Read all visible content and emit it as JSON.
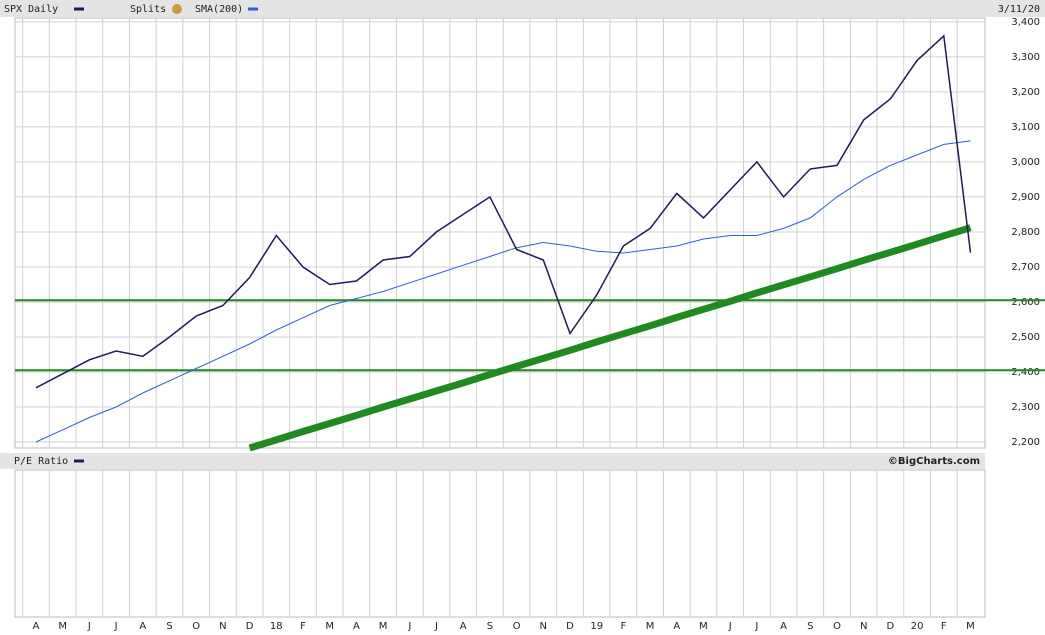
{
  "chart_data": {
    "type": "line",
    "title": "SPX Daily",
    "splits_label": "Splits",
    "date": "3/11/20",
    "lower_panel_title": "P/E Ratio",
    "credit": "©BigCharts.com",
    "categories": [
      "A",
      "M",
      "J",
      "J",
      "A",
      "S",
      "O",
      "N",
      "D",
      "18",
      "F",
      "M",
      "A",
      "M",
      "J",
      "J",
      "A",
      "S",
      "O",
      "N",
      "D",
      "19",
      "F",
      "M",
      "A",
      "M",
      "J",
      "J",
      "A",
      "S",
      "O",
      "N",
      "D",
      "20",
      "F",
      "M"
    ],
    "series": [
      {
        "name": "SPX Daily",
        "color": "#1c1c5a",
        "values": [
          2355,
          2395,
          2435,
          2460,
          2445,
          2500,
          2560,
          2590,
          2670,
          2790,
          2700,
          2650,
          2660,
          2720,
          2730,
          2800,
          2850,
          2900,
          2750,
          2720,
          2510,
          2620,
          2760,
          2810,
          2910,
          2840,
          2920,
          3000,
          2900,
          2980,
          2990,
          3120,
          3180,
          3290,
          3360,
          2741
        ]
      },
      {
        "name": "SMA(200)",
        "color": "#2a5fe0",
        "values": [
          2200,
          2235,
          2270,
          2300,
          2340,
          2375,
          2410,
          2445,
          2480,
          2520,
          2555,
          2590,
          2610,
          2630,
          2655,
          2680,
          2705,
          2730,
          2755,
          2770,
          2760,
          2745,
          2740,
          2750,
          2760,
          2780,
          2790,
          2790,
          2810,
          2840,
          2900,
          2950,
          2990,
          3020,
          3050,
          3060
        ]
      }
    ],
    "reference_lines": [
      {
        "value": 2605,
        "color": "#1f8a1f"
      },
      {
        "value": 2405,
        "color": "#1f8a1f"
      }
    ],
    "trendline": {
      "color": "#1f8a1f",
      "values": [
        null,
        null,
        null,
        null,
        null,
        null,
        null,
        null,
        2183,
        2206,
        2230,
        2253,
        2276,
        2300,
        2323,
        2346,
        2369,
        2393,
        2416,
        2439,
        2462,
        2486,
        2509,
        2532,
        2556,
        2579,
        2602,
        2626,
        2649,
        2672,
        2695,
        2719,
        2742,
        2765,
        2789,
        2812
      ]
    },
    "ylim": [
      2183,
      3411
    ],
    "yticks": [
      {
        "value": 2200,
        "label": "2,200"
      },
      {
        "value": 2300,
        "label": "2,300"
      },
      {
        "value": 2400,
        "label": "2,400"
      },
      {
        "value": 2500,
        "label": "2,500"
      },
      {
        "value": 2600,
        "label": "2,600"
      },
      {
        "value": 2700,
        "label": "2,700"
      },
      {
        "value": 2800,
        "label": "2,800"
      },
      {
        "value": 2900,
        "label": "2,900"
      },
      {
        "value": 3000,
        "label": "3,000"
      },
      {
        "value": 3100,
        "label": "3,100"
      },
      {
        "value": 3200,
        "label": "3,200"
      },
      {
        "value": 3300,
        "label": "3,300"
      },
      {
        "value": 3400,
        "label": "3,400"
      }
    ],
    "grid": true
  }
}
